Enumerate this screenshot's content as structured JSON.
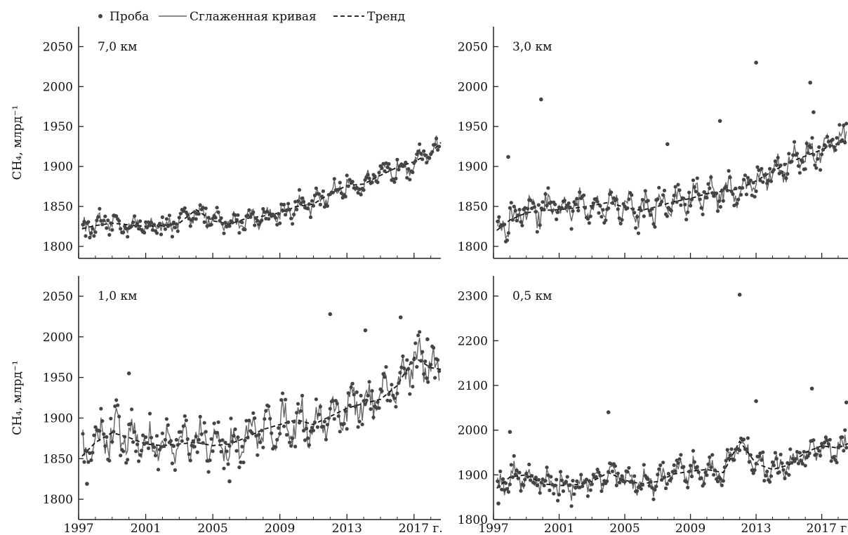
{
  "legend": {
    "sample": "Проба",
    "smooth": "Сглаженная кривая",
    "trend": "Тренд"
  },
  "colors": {
    "sample": "#444444",
    "smooth": "#666666",
    "trend": "#111111",
    "axis": "#222222"
  },
  "chart_data": [
    {
      "type": "scatter",
      "panel": "top-left",
      "annotation": "7,0 км",
      "ylabel": "CH₄, млрд⁻¹",
      "xlim": [
        1997,
        2018.6
      ],
      "ylim": [
        1785,
        2075
      ],
      "yticks": [
        1800,
        1850,
        1900,
        1950,
        2000,
        2050
      ],
      "xticks": [
        1997,
        2001,
        2005,
        2009,
        2013,
        2017
      ],
      "xtick_labels": [],
      "grid": false,
      "trend": [
        [
          1997.2,
          1822
        ],
        [
          1998,
          1826
        ],
        [
          1999,
          1829
        ],
        [
          2000,
          1827
        ],
        [
          2001,
          1825
        ],
        [
          2002,
          1826
        ],
        [
          2003,
          1829
        ],
        [
          2004,
          1846
        ],
        [
          2005,
          1832
        ],
        [
          2006,
          1828
        ],
        [
          2007,
          1835
        ],
        [
          2008,
          1838
        ],
        [
          2009,
          1842
        ],
        [
          2010,
          1850
        ],
        [
          2011,
          1853
        ],
        [
          2012,
          1866
        ],
        [
          2013,
          1876
        ],
        [
          2014,
          1878
        ],
        [
          2015,
          1889
        ],
        [
          2016,
          1899
        ],
        [
          2017,
          1906
        ],
        [
          2018,
          1917
        ],
        [
          2018.6,
          1930
        ]
      ]
    },
    {
      "type": "scatter",
      "panel": "top-right",
      "annotation": "3,0 км",
      "ylabel": "",
      "xlim": [
        1997,
        2018.6
      ],
      "ylim": [
        1785,
        2075
      ],
      "yticks": [
        1800,
        1850,
        1900,
        1950,
        2000,
        2050
      ],
      "xticks": [
        1997,
        2001,
        2005,
        2009,
        2013,
        2017
      ],
      "xtick_labels": [],
      "grid": false,
      "trend": [
        [
          1997.2,
          1820
        ],
        [
          1998,
          1833
        ],
        [
          1999,
          1842
        ],
        [
          2000,
          1845
        ],
        [
          2001,
          1846
        ],
        [
          2002,
          1848
        ],
        [
          2003,
          1851
        ],
        [
          2004,
          1855
        ],
        [
          2005,
          1849
        ],
        [
          2006,
          1845
        ],
        [
          2007,
          1850
        ],
        [
          2008,
          1856
        ],
        [
          2009,
          1860
        ],
        [
          2010,
          1866
        ],
        [
          2011,
          1869
        ],
        [
          2012,
          1872
        ],
        [
          2013,
          1882
        ],
        [
          2014,
          1894
        ],
        [
          2015,
          1905
        ],
        [
          2016,
          1913
        ],
        [
          2017,
          1921
        ],
        [
          2018,
          1929
        ],
        [
          2018.6,
          1933
        ]
      ],
      "outliers": [
        [
          1997.9,
          1912
        ],
        [
          1999.9,
          1984
        ],
        [
          2007.6,
          1928
        ],
        [
          2010.8,
          1957
        ],
        [
          2013.0,
          2030
        ],
        [
          2016.3,
          2005
        ],
        [
          2016.5,
          1968
        ]
      ]
    },
    {
      "type": "scatter",
      "panel": "bottom-left",
      "annotation": "1,0 км",
      "ylabel": "CH₄, млрд⁻¹",
      "xlim": [
        1997,
        2018.6
      ],
      "ylim": [
        1775,
        2075
      ],
      "yticks": [
        1800,
        1850,
        1900,
        1950,
        2000,
        2050
      ],
      "xticks": [
        1997,
        2001,
        2005,
        2009,
        2013,
        2017
      ],
      "xtick_labels": [
        "1997",
        "2001",
        "2005",
        "2009",
        "2013",
        "2017 г."
      ],
      "grid": false,
      "trend": [
        [
          1997.2,
          1853
        ],
        [
          1998,
          1870
        ],
        [
          1999,
          1882
        ],
        [
          2000,
          1876
        ],
        [
          2001,
          1868
        ],
        [
          2002,
          1866
        ],
        [
          2003,
          1868
        ],
        [
          2004,
          1870
        ],
        [
          2005,
          1866
        ],
        [
          2006,
          1868
        ],
        [
          2007,
          1876
        ],
        [
          2008,
          1886
        ],
        [
          2009,
          1892
        ],
        [
          2010,
          1898
        ],
        [
          2011,
          1892
        ],
        [
          2012,
          1902
        ],
        [
          2013,
          1912
        ],
        [
          2014,
          1918
        ],
        [
          2015,
          1923
        ],
        [
          2016,
          1940
        ],
        [
          2017,
          1975
        ],
        [
          2018,
          1962
        ],
        [
          2018.6,
          1960
        ]
      ],
      "outliers": [
        [
          1997.5,
          1819
        ],
        [
          2000.0,
          1955
        ],
        [
          2006.0,
          1822
        ],
        [
          2012.0,
          2028
        ],
        [
          2014.1,
          2008
        ],
        [
          2016.2,
          2024
        ],
        [
          2017.8,
          1997
        ]
      ]
    },
    {
      "type": "scatter",
      "panel": "bottom-right",
      "annotation": "0,5 км",
      "ylabel": "",
      "xlim": [
        1997,
        2018.6
      ],
      "ylim": [
        1800,
        2345
      ],
      "yticks": [
        1800,
        1900,
        2000,
        2100,
        2200,
        2300
      ],
      "xticks": [
        1997,
        2001,
        2005,
        2009,
        2013,
        2017
      ],
      "xtick_labels": [
        "1997",
        "2001",
        "2005",
        "2009",
        "2013",
        "2017 г."
      ],
      "grid": false,
      "trend": [
        [
          1997.2,
          1870
        ],
        [
          1998,
          1895
        ],
        [
          1999,
          1900
        ],
        [
          2000,
          1880
        ],
        [
          2001,
          1876
        ],
        [
          2002,
          1878
        ],
        [
          2003,
          1885
        ],
        [
          2004,
          1905
        ],
        [
          2005,
          1888
        ],
        [
          2006,
          1880
        ],
        [
          2007,
          1885
        ],
        [
          2008,
          1902
        ],
        [
          2009,
          1908
        ],
        [
          2010,
          1912
        ],
        [
          2011,
          1905
        ],
        [
          2012,
          1975
        ],
        [
          2013,
          1925
        ],
        [
          2014,
          1912
        ],
        [
          2015,
          1922
        ],
        [
          2016,
          1950
        ],
        [
          2017,
          1965
        ],
        [
          2018,
          1960
        ],
        [
          2018.6,
          1970
        ]
      ],
      "outliers": [
        [
          1997.3,
          1836
        ],
        [
          1998.0,
          1996
        ],
        [
          2004.0,
          2040
        ],
        [
          2012.0,
          2303
        ],
        [
          2013.0,
          2065
        ],
        [
          2016.4,
          2093
        ],
        [
          2018.5,
          2062
        ]
      ]
    }
  ]
}
